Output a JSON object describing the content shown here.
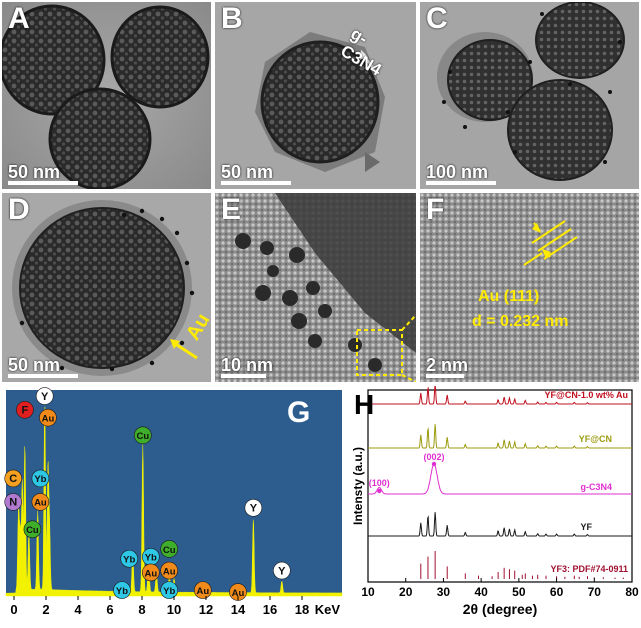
{
  "figure": {
    "panels": [
      {
        "id": "A",
        "label": "A",
        "scale": "50 nm"
      },
      {
        "id": "B",
        "label": "B",
        "scale": "50 nm",
        "annotation": "g-C3N4"
      },
      {
        "id": "C",
        "label": "C",
        "scale": "100 nm"
      },
      {
        "id": "D",
        "label": "D",
        "scale": "50 nm",
        "annotation": "Au"
      },
      {
        "id": "E",
        "label": "E",
        "scale": "10 nm"
      },
      {
        "id": "F",
        "label": "F",
        "scale": "2 nm",
        "annotation_line1": "Au (111)",
        "annotation_line2": "d = 0.232 nm"
      }
    ]
  },
  "colors": {
    "eds_background": "#2d5d8f",
    "eds_spectrum": "#f2f200",
    "xrd_yfcnau": "#c0101f",
    "xrd_yfcn": "#9b9b10",
    "xrd_gcn": "#e030d0",
    "xrd_yf": "#1a1a1a",
    "xrd_ref": "#a01030"
  },
  "chart_data": [
    {
      "type": "area",
      "panel_label": "G",
      "xlabel": "KeV",
      "xlim": [
        -0.5,
        20.5
      ],
      "xticks": [
        "0",
        "2",
        "4",
        "6",
        "8",
        "10",
        "12",
        "14",
        "16",
        "18"
      ],
      "ylim": [
        0,
        1.0
      ],
      "peaks": [
        {
          "x": 0.28,
          "y": 0.4
        },
        {
          "x": 0.39,
          "y": 0.28
        },
        {
          "x": 0.52,
          "y": 0.55
        },
        {
          "x": 0.68,
          "y": 0.74
        },
        {
          "x": 0.93,
          "y": 0.3
        },
        {
          "x": 1.48,
          "y": 0.4
        },
        {
          "x": 1.92,
          "y": 0.95
        },
        {
          "x": 2.12,
          "y": 0.62
        },
        {
          "x": 2.22,
          "y": 0.3
        },
        {
          "x": 7.42,
          "y": 0.2
        },
        {
          "x": 8.05,
          "y": 0.75
        },
        {
          "x": 8.41,
          "y": 0.17
        },
        {
          "x": 8.9,
          "y": 0.1
        },
        {
          "x": 9.71,
          "y": 0.09
        },
        {
          "x": 10.0,
          "y": 0.07
        },
        {
          "x": 14.96,
          "y": 0.38
        },
        {
          "x": 16.74,
          "y": 0.06
        }
      ],
      "element_labels": [
        {
          "text": "F",
          "x": 0.68,
          "y": 0.95,
          "color": "#e02020"
        },
        {
          "text": "Y",
          "x": 1.92,
          "y": 1.02,
          "color": "#ffffff"
        },
        {
          "text": "Au",
          "x": 2.12,
          "y": 0.91,
          "color": "#f08a1a"
        },
        {
          "text": "Cu",
          "x": 8.05,
          "y": 0.82,
          "color": "#3fae2a"
        },
        {
          "text": "C",
          "x": -0.05,
          "y": 0.6,
          "color": "#f5a020"
        },
        {
          "text": "Yb",
          "x": 1.65,
          "y": 0.6,
          "color": "#2fc7e6"
        },
        {
          "text": "N",
          "x": -0.05,
          "y": 0.48,
          "color": "#b07ad0"
        },
        {
          "text": "Au",
          "x": 1.65,
          "y": 0.48,
          "color": "#f08a1a"
        },
        {
          "text": "Cu",
          "x": 1.15,
          "y": 0.34,
          "color": "#3fae2a"
        },
        {
          "text": "Cu",
          "x": 9.7,
          "y": 0.24,
          "color": "#3fae2a"
        },
        {
          "text": "Yb",
          "x": 7.2,
          "y": 0.19,
          "color": "#2fc7e6"
        },
        {
          "text": "Yb",
          "x": 8.55,
          "y": 0.2,
          "color": "#2fc7e6"
        },
        {
          "text": "Au",
          "x": 9.7,
          "y": 0.13,
          "color": "#f08a1a"
        },
        {
          "text": "Au",
          "x": 8.55,
          "y": 0.12,
          "color": "#f08a1a"
        },
        {
          "text": "Yb",
          "x": 6.75,
          "y": 0.03,
          "color": "#2fc7e6"
        },
        {
          "text": "Yb",
          "x": 9.7,
          "y": 0.03,
          "color": "#2fc7e6"
        },
        {
          "text": "Au",
          "x": 11.8,
          "y": 0.03,
          "color": "#f08a1a"
        },
        {
          "text": "Au",
          "x": 14.0,
          "y": 0.02,
          "color": "#f08a1a"
        },
        {
          "text": "Y",
          "x": 14.96,
          "y": 0.45,
          "color": "#ffffff"
        },
        {
          "text": "Y",
          "x": 16.74,
          "y": 0.13,
          "color": "#ffffff"
        }
      ]
    },
    {
      "type": "line",
      "panel_label": "H",
      "xlabel": "2θ (degree)",
      "ylabel": "Intensty (a.u.)",
      "xlim": [
        10,
        80
      ],
      "xticks": [
        "10",
        "20",
        "30",
        "40",
        "50",
        "60",
        "70",
        "80"
      ],
      "series": [
        {
          "name": "YF@CN-1.0 wt% Au",
          "color": "#c0101f"
        },
        {
          "name": "YF@CN",
          "color": "#9b9b10"
        },
        {
          "name": "g-C3N4",
          "color": "#e030d0"
        },
        {
          "name": "YF",
          "color": "#1a1a1a"
        },
        {
          "name": "YF3: PDF#74-0911",
          "color": "#a01030"
        }
      ],
      "annotations": [
        "(100)",
        "(002)"
      ],
      "yf_peaks": [
        24.0,
        25.9,
        27.8,
        31.0,
        35.8,
        44.5,
        46.1,
        47.5,
        48.9,
        51.7,
        55.0,
        57.2,
        60.0,
        64.7,
        68.2
      ],
      "yf_peak_heights": [
        0.55,
        0.85,
        1.0,
        0.45,
        0.15,
        0.22,
        0.35,
        0.3,
        0.25,
        0.18,
        0.1,
        0.08,
        0.08,
        0.08,
        0.06
      ],
      "gcn_peaks": [
        13.0,
        27.5
      ],
      "gcn_peak_heights": [
        0.22,
        1.0
      ],
      "ref_lines": [
        24.0,
        25.9,
        27.8,
        31.0,
        35.8,
        39.3,
        42.9,
        44.5,
        46.1,
        47.5,
        48.9,
        50.9,
        51.7,
        53.6,
        55.0,
        57.2,
        60.0,
        62.2,
        64.7,
        66.0,
        68.2,
        70.0,
        72.4,
        75.5,
        77.7
      ],
      "ref_heights": [
        0.55,
        0.8,
        1.0,
        0.45,
        0.2,
        0.12,
        0.1,
        0.25,
        0.4,
        0.35,
        0.3,
        0.15,
        0.2,
        0.12,
        0.15,
        0.12,
        0.1,
        0.08,
        0.12,
        0.08,
        0.1,
        0.06,
        0.06,
        0.05,
        0.05
      ]
    }
  ]
}
